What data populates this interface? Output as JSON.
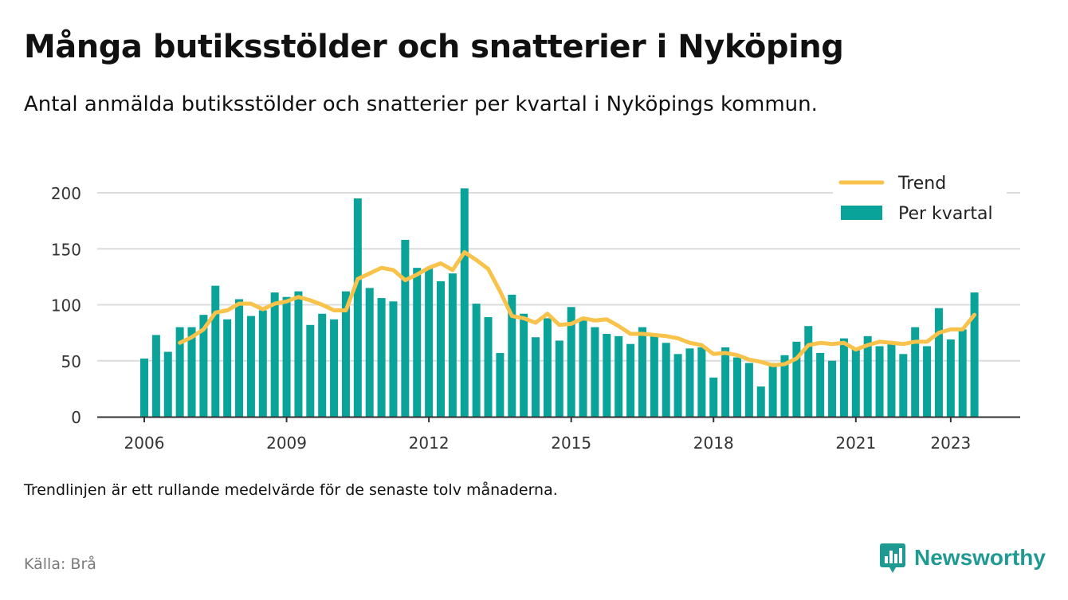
{
  "title": "Många butiksstölder och snatterier i Nyköping",
  "subtitle": "Antal anmälda butiksstölder och snatterier per kvartal i Nyköpings kommun.",
  "note": "Trendlinjen är ett rullande medelvärde för de senaste tolv månaderna.",
  "source": "Källa: Brå",
  "brand": {
    "name": "Newsworthy",
    "icon": "newsworthy-logo-icon"
  },
  "colors": {
    "bars": "#0aa39a",
    "trend": "#f8c24b",
    "grid": "#dcdcdc",
    "axis": "#333333",
    "brand": "#1f9a93"
  },
  "chart_data": {
    "type": "bar",
    "title": "Många butiksstölder och snatterier i Nyköping",
    "xlabel": "",
    "ylabel": "",
    "ylim": [
      0,
      210
    ],
    "yticks": [
      0,
      50,
      100,
      150,
      200
    ],
    "xticks": [
      "2006",
      "2009",
      "2012",
      "2015",
      "2018",
      "2021",
      "2023"
    ],
    "grid": true,
    "legend_position": "top-right",
    "legend": [
      "Trend",
      "Per kvartal"
    ],
    "categories": [
      "2006 Q1",
      "2006 Q2",
      "2006 Q3",
      "2006 Q4",
      "2007 Q1",
      "2007 Q2",
      "2007 Q3",
      "2007 Q4",
      "2008 Q1",
      "2008 Q2",
      "2008 Q3",
      "2008 Q4",
      "2009 Q1",
      "2009 Q2",
      "2009 Q3",
      "2009 Q4",
      "2010 Q1",
      "2010 Q2",
      "2010 Q3",
      "2010 Q4",
      "2011 Q1",
      "2011 Q2",
      "2011 Q3",
      "2011 Q4",
      "2012 Q1",
      "2012 Q2",
      "2012 Q3",
      "2012 Q4",
      "2013 Q1",
      "2013 Q2",
      "2013 Q3",
      "2013 Q4",
      "2014 Q1",
      "2014 Q2",
      "2014 Q3",
      "2014 Q4",
      "2015 Q1",
      "2015 Q2",
      "2015 Q3",
      "2015 Q4",
      "2016 Q1",
      "2016 Q2",
      "2016 Q3",
      "2016 Q4",
      "2017 Q1",
      "2017 Q2",
      "2017 Q3",
      "2017 Q4",
      "2018 Q1",
      "2018 Q2",
      "2018 Q3",
      "2018 Q4",
      "2019 Q1",
      "2019 Q2",
      "2019 Q3",
      "2019 Q4",
      "2020 Q1",
      "2020 Q2",
      "2020 Q3",
      "2020 Q4",
      "2021 Q1",
      "2021 Q2",
      "2021 Q3",
      "2021 Q4",
      "2022 Q1",
      "2022 Q2",
      "2022 Q3",
      "2022 Q4",
      "2023 Q1",
      "2023 Q2",
      "2023 Q3"
    ],
    "series": [
      {
        "name": "Per kvartal",
        "type": "bar",
        "values": [
          52,
          73,
          58,
          80,
          80,
          91,
          117,
          87,
          105,
          90,
          95,
          111,
          107,
          112,
          82,
          92,
          87,
          112,
          195,
          115,
          106,
          103,
          158,
          133,
          133,
          121,
          128,
          204,
          101,
          89,
          57,
          109,
          92,
          71,
          88,
          68,
          98,
          86,
          80,
          74,
          72,
          65,
          80,
          72,
          66,
          56,
          61,
          62,
          35,
          62,
          53,
          48,
          27,
          48,
          55,
          67,
          81,
          57,
          50,
          70,
          60,
          72,
          63,
          65,
          56,
          80,
          63,
          97,
          69,
          78,
          111
        ]
      },
      {
        "name": "Trend",
        "type": "line",
        "values": [
          null,
          null,
          null,
          66,
          71,
          78,
          93,
          95,
          101,
          101,
          96,
          101,
          103,
          107,
          104,
          100,
          95,
          95,
          123,
          128,
          133,
          131,
          122,
          127,
          133,
          137,
          131,
          147,
          140,
          132,
          112,
          90,
          88,
          84,
          92,
          82,
          83,
          88,
          86,
          87,
          81,
          74,
          74,
          73,
          72,
          70,
          66,
          64,
          56,
          57,
          55,
          51,
          49,
          46,
          47,
          52,
          64,
          66,
          65,
          66,
          60,
          64,
          67,
          66,
          65,
          67,
          67,
          75,
          78,
          78,
          91
        ]
      }
    ]
  }
}
